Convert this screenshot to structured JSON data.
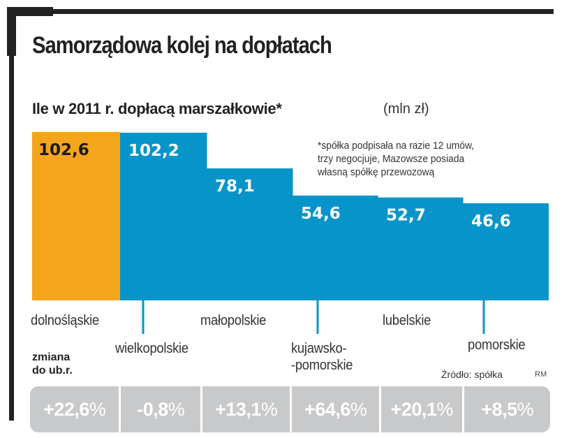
{
  "title": "Samorządowa kolej na dopłatach",
  "subtitle": "Ile w 2011 r. dopłacą marszałkowie*",
  "unit": "(mln zł)",
  "footnote": [
    "*spółka podpisała na razie 12 umów,",
    " trzy negocjuje, Mazowsze posiada",
    " własną spółkę przewozową"
  ],
  "change_label": [
    "zmiana",
    "do ub.r."
  ],
  "source": "Źródło: spółka",
  "author": "RM",
  "colors": {
    "highlight": "#f5a51c",
    "bar": "#0795c9",
    "change_cell": "#c8c9ca",
    "frame": "#222222"
  },
  "chart_data": {
    "type": "bar",
    "title": "Ile w 2011 r. dopłacą marszałkowie*",
    "ylabel": "mln zł",
    "xlabel": "",
    "categories": [
      "dolnośląskie",
      "wielkopolskie",
      "małopolskie",
      "kujawsko-pomorskie",
      "lubelskie",
      "pomorskie"
    ],
    "category_display": [
      [
        "dolnośląskie"
      ],
      [
        "wielkopolskie"
      ],
      [
        "małopolskie"
      ],
      [
        "kujawsko-",
        "-pomorskie"
      ],
      [
        "lubelskie"
      ],
      [
        "pomorskie"
      ]
    ],
    "values": [
      102.6,
      102.2,
      78.1,
      54.6,
      52.7,
      46.6
    ],
    "value_labels": [
      "102,6",
      "102,2",
      "78,1",
      "54,6",
      "52,7",
      "46,6"
    ],
    "highlighted_index": 0,
    "change_vs_previous_year": [
      "+22,6%",
      "-0,8%",
      "+13,1%",
      "+64,6%",
      "+20,1%",
      "+8,5%"
    ],
    "ylim": [
      0,
      102.6
    ],
    "grid": false,
    "legend": "none"
  }
}
